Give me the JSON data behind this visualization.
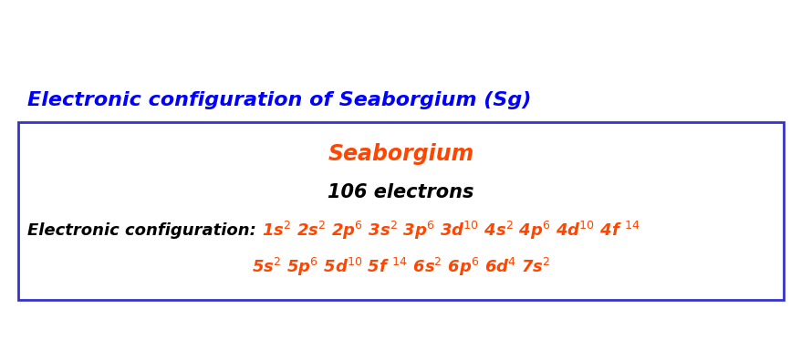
{
  "title": "Electronic configuration of Seaborgium (Sg)",
  "title_color": "#0000FF",
  "title_fontsize": 16,
  "element_name": "Seaborgium",
  "element_color": "#FF4500",
  "element_fontsize": 17,
  "electrons_text": "106 electrons",
  "electrons_color": "#000000",
  "electrons_fontsize": 15,
  "config_label": "Electronic configuration: ",
  "config_label_color": "#000000",
  "config_label_fontsize": 13,
  "config_line1": "1s$^{2}$ 2s$^{2}$ 2p$^{6}$ 3s$^{2}$ 3p$^{6}$ 3d$^{10}$ 4s$^{2}$ 4p$^{6}$ 4d$^{10}$ 4f $^{14}$",
  "config_line2": "5s$^{2}$ 5p$^{6}$ 5d$^{10}$ 5f $^{14}$ 6s$^{2}$ 6p$^{6}$ 6d$^{4}$ 7s$^{2}$",
  "config_color": "#FF4500",
  "config_fontsize": 13,
  "box_edge_color": "#3333CC",
  "background_color": "#FFFFFF",
  "fig_width": 8.79,
  "fig_height": 3.84,
  "dpi": 100
}
